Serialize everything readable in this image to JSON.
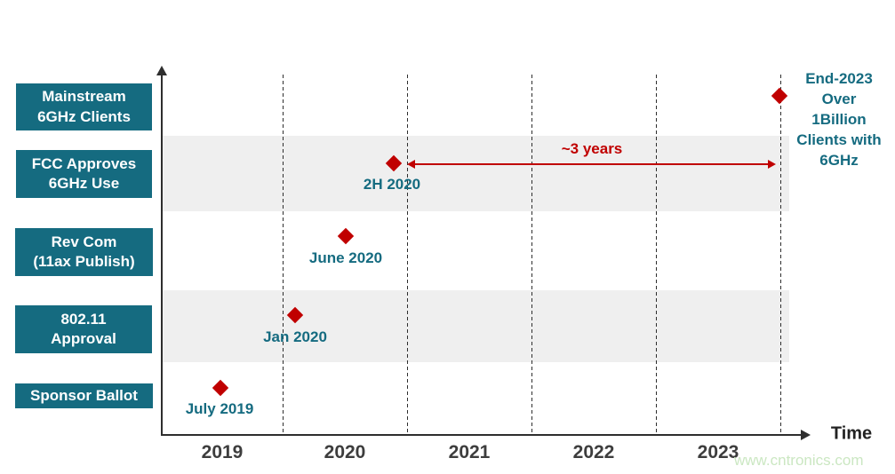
{
  "rows": [
    {
      "label": "Mainstream\n6GHz Clients"
    },
    {
      "label": "FCC Approves\n6GHz Use"
    },
    {
      "label": "Rev Com\n(11ax Publish)"
    },
    {
      "label": "802.11\nApproval"
    },
    {
      "label": "Sponsor Ballot"
    }
  ],
  "milestones": [
    {
      "row": "Sponsor Ballot",
      "date_label": "July 2019"
    },
    {
      "row": "802.11 Approval",
      "date_label": "Jan 2020"
    },
    {
      "row": "Rev Com (11ax Publish)",
      "date_label": "June 2020"
    },
    {
      "row": "FCC Approves 6GHz Use",
      "date_label": "2H 2020"
    },
    {
      "row": "Mainstream 6GHz Clients",
      "date_label": "End-2023"
    }
  ],
  "annotation": {
    "label": "~3 years"
  },
  "note": {
    "text": "End-2023\nOver\n1Billion\nClients with\n6GHz"
  },
  "axis": {
    "x_label": "Time",
    "years": [
      "2019",
      "2020",
      "2021",
      "2022",
      "2023"
    ]
  },
  "watermark": {
    "text": "www.cntronics.com"
  },
  "colors": {
    "teal": "#156b80",
    "red": "#c00000",
    "band": "#efefef",
    "axis": "#2e2e2e",
    "year": "#3d3d3d",
    "watermark": "#cbe7c2"
  },
  "chart_data": {
    "type": "scatter",
    "title": "",
    "xlabel": "Time",
    "ylabel": "",
    "x_ticks": [
      "2019",
      "2020",
      "2021",
      "2022",
      "2023"
    ],
    "x_range": [
      2019,
      2024
    ],
    "categories_top_to_bottom": [
      "Mainstream 6GHz Clients",
      "FCC Approves 6GHz Use",
      "Rev Com (11ax Publish)",
      "802.11 Approval",
      "Sponsor Ballot"
    ],
    "marker": "diamond",
    "marker_color": "#c00000",
    "grid": "dashed vertical lines at year boundaries",
    "shaded_band_rows": [
      "FCC Approves 6GHz Use",
      "802.11 Approval"
    ],
    "points": [
      {
        "category": "Sponsor Ballot",
        "label": "July 2019",
        "x": 2019.5
      },
      {
        "category": "802.11 Approval",
        "label": "Jan 2020",
        "x": 2020.1
      },
      {
        "category": "Rev Com (11ax Publish)",
        "label": "June 2020",
        "x": 2020.5
      },
      {
        "category": "FCC Approves 6GHz Use",
        "label": "2H 2020",
        "x": 2020.9
      },
      {
        "category": "Mainstream 6GHz Clients",
        "label": "End-2023",
        "x": 2023.95
      }
    ],
    "annotations": [
      {
        "text": "~3 years",
        "type": "double-arrow",
        "row": "FCC Approves 6GHz Use",
        "x_start": 2020.9,
        "x_end": 2023.95
      },
      {
        "text": "End-2023 Over 1Billion Clients with 6GHz",
        "type": "note",
        "row": "Mainstream 6GHz Clients",
        "x": 2023.95
      }
    ]
  }
}
